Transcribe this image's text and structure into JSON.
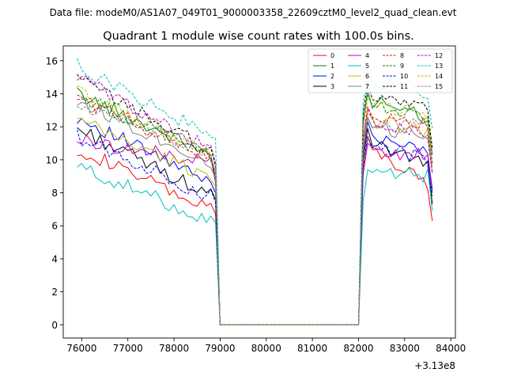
{
  "suptitle": "Data file: modeM0/AS1A07_049T01_9000003358_22609cztM0_level2_quad_clean.evt",
  "chart_data": {
    "type": "line",
    "title": "Quadrant 1 module wise count rates with 100.0s bins.",
    "xlabel": "",
    "ylabel": "",
    "x_offset_label": "+3.13e8",
    "xlim": [
      75600,
      84100
    ],
    "ylim": [
      -0.8,
      16.9
    ],
    "x_ticks": [
      76000,
      77000,
      78000,
      79000,
      80000,
      81000,
      82000,
      83000,
      84000
    ],
    "x_tick_labels": [
      "76000",
      "77000",
      "78000",
      "79000",
      "80000",
      "81000",
      "82000",
      "83000",
      "84000"
    ],
    "y_ticks": [
      0,
      2,
      4,
      6,
      8,
      10,
      12,
      14,
      16
    ],
    "y_tick_labels": [
      "0",
      "2",
      "4",
      "6",
      "8",
      "10",
      "12",
      "14",
      "16"
    ],
    "legend_position": "top-right",
    "segments": [
      {
        "x_start": 75900,
        "x_end": 78900
      },
      {
        "x_start": 79000,
        "x_end": 82000,
        "flat_zero": true
      },
      {
        "x_start": 82100,
        "x_end": 83600
      }
    ],
    "x_step": 100,
    "series": [
      {
        "name": "0",
        "color": "#ff0000",
        "dash": "solid",
        "start": 10.7,
        "end": 6.8,
        "gap_end": 6.7,
        "restart": 11.0,
        "final": 6.3
      },
      {
        "name": "1",
        "color": "#008000",
        "dash": "solid",
        "start": 14.0,
        "end": 10.2,
        "gap_end": 8.8,
        "restart": 13.8,
        "final": 10.3
      },
      {
        "name": "2",
        "color": "#0000ff",
        "dash": "solid",
        "start": 12.6,
        "end": 8.4,
        "gap_end": 8.0,
        "restart": 11.9,
        "final": 8.2
      },
      {
        "name": "3",
        "color": "#000000",
        "dash": "solid",
        "start": 11.9,
        "end": 7.7,
        "gap_end": 7.6,
        "restart": 11.5,
        "final": 7.3
      },
      {
        "name": "4",
        "color": "#bf00bf",
        "dash": "solid",
        "start": 11.2,
        "end": 9.8,
        "gap_end": 8.6,
        "restart": 10.6,
        "final": 8.0
      },
      {
        "name": "5",
        "color": "#00bfbf",
        "dash": "solid",
        "start": 9.6,
        "end": 6.2,
        "gap_end": 6.2,
        "restart": 9.0,
        "final": 6.9
      },
      {
        "name": "6",
        "color": "#bfbf00",
        "dash": "solid",
        "start": 12.4,
        "end": 8.8,
        "gap_end": 8.4,
        "restart": 12.4,
        "final": 9.6
      },
      {
        "name": "7",
        "color": "#808080",
        "dash": "solid",
        "start": 13.6,
        "end": 9.7,
        "gap_end": 8.9,
        "restart": 12.1,
        "final": 9.2
      },
      {
        "name": "8",
        "color": "#ff0000",
        "dash": "dashed",
        "start": 13.8,
        "end": 10.0,
        "gap_end": 9.0,
        "restart": 12.8,
        "final": 9.8
      },
      {
        "name": "9",
        "color": "#008000",
        "dash": "dashed",
        "start": 13.9,
        "end": 10.2,
        "gap_end": 9.2,
        "restart": 13.5,
        "final": 10.6
      },
      {
        "name": "10",
        "color": "#0000ff",
        "dash": "dashed",
        "start": 11.4,
        "end": 7.6,
        "gap_end": 7.4,
        "restart": 11.0,
        "final": 7.8
      },
      {
        "name": "11",
        "color": "#000000",
        "dash": "dashed",
        "start": 14.9,
        "end": 10.4,
        "gap_end": 9.6,
        "restart": 14.3,
        "final": 10.7
      },
      {
        "name": "12",
        "color": "#bf00bf",
        "dash": "dashed",
        "start": 15.1,
        "end": 10.4,
        "gap_end": 9.8,
        "restart": 12.7,
        "final": 9.2
      },
      {
        "name": "13",
        "color": "#00bfbf",
        "dash": "dashed",
        "start": 15.7,
        "end": 11.3,
        "gap_end": 11.3,
        "restart": 14.9,
        "final": 11.9
      },
      {
        "name": "14",
        "color": "#bfbf00",
        "dash": "dashed",
        "start": 14.2,
        "end": 10.2,
        "gap_end": 9.4,
        "restart": 13.4,
        "final": 10.5
      },
      {
        "name": "15",
        "color": "#808080",
        "dash": "dashed",
        "start": 13.3,
        "end": 10.3,
        "gap_end": 9.3,
        "restart": 12.2,
        "final": 9.9
      }
    ]
  }
}
